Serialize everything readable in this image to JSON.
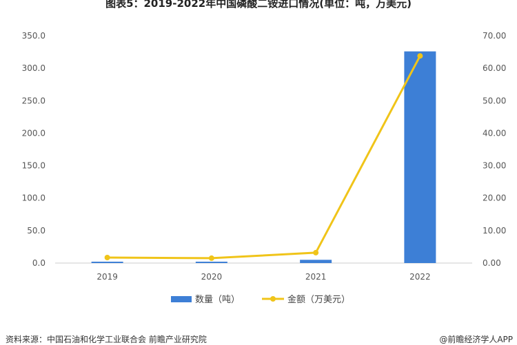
{
  "title": "图表5：2019-2022年中国磷酸二铵进口情况(单位：吨，万美元)",
  "source": "资料来源：中国石油和化学工业联合会 前瞻产业研究院",
  "brand": "@前瞻经济学人APP",
  "chart_data": {
    "type": "bar+line",
    "categories": [
      "2019",
      "2020",
      "2021",
      "2022"
    ],
    "series": [
      {
        "name": "数量（吨）",
        "type": "bar",
        "axis": "left",
        "color": "#3d7fd6",
        "values": [
          0.5,
          1.0,
          5.0,
          326
        ]
      },
      {
        "name": "金额（万美元）",
        "type": "line",
        "axis": "right",
        "color": "#f0c419",
        "values": [
          1.7,
          1.5,
          3.2,
          63.8
        ]
      }
    ],
    "y_left": {
      "ticks": [
        "0.0",
        "50.0",
        "100.0",
        "150.0",
        "200.0",
        "250.0",
        "300.0",
        "350.0"
      ],
      "range": [
        0,
        350
      ]
    },
    "y_right": {
      "ticks": [
        "0.00",
        "10.00",
        "20.00",
        "30.00",
        "40.00",
        "50.00",
        "60.00",
        "70.00"
      ],
      "range": [
        0,
        70
      ]
    },
    "grid": false,
    "legend": "bottom"
  }
}
